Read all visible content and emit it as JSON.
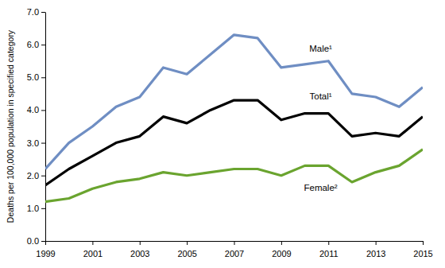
{
  "chart_data": {
    "type": "line",
    "y_label": "Deaths per 100,000 population in specified category",
    "x": [
      1999,
      2000,
      2001,
      2002,
      2003,
      2004,
      2005,
      2006,
      2007,
      2008,
      2009,
      2010,
      2011,
      2012,
      2013,
      2014,
      2015
    ],
    "xlim": [
      1999,
      2015
    ],
    "xticks": [
      1999,
      2001,
      2003,
      2005,
      2007,
      2009,
      2011,
      2013,
      2015
    ],
    "ylim": [
      0,
      7
    ],
    "yticks": [
      {
        "value": 0,
        "label": "0.0"
      },
      {
        "value": 1,
        "label": "1.0"
      },
      {
        "value": 2,
        "label": "2.0"
      },
      {
        "value": 3,
        "label": "3.0"
      },
      {
        "value": 4,
        "label": "4.0"
      },
      {
        "value": 5,
        "label": "5.0"
      },
      {
        "value": 6,
        "label": "6.0"
      },
      {
        "value": 7,
        "label": "7.0"
      }
    ],
    "grid": false,
    "series": [
      {
        "name": "Male¹",
        "color": "#6f8ec3",
        "values": [
          2.2,
          3.0,
          3.5,
          4.1,
          4.4,
          5.3,
          5.1,
          5.7,
          6.3,
          6.2,
          5.3,
          5.4,
          5.5,
          4.5,
          4.4,
          4.1,
          4.7
        ]
      },
      {
        "name": "Total¹",
        "color": "#000000",
        "values": [
          1.7,
          2.2,
          2.6,
          3.0,
          3.2,
          3.8,
          3.6,
          4.0,
          4.3,
          4.3,
          3.7,
          3.9,
          3.9,
          3.2,
          3.3,
          3.2,
          3.8
        ]
      },
      {
        "name": "Female²",
        "color": "#6aa42f",
        "values": [
          1.2,
          1.3,
          1.6,
          1.8,
          1.9,
          2.1,
          2.0,
          2.1,
          2.2,
          2.2,
          2.0,
          2.3,
          2.3,
          1.8,
          2.1,
          2.3,
          2.8
        ]
      }
    ]
  }
}
